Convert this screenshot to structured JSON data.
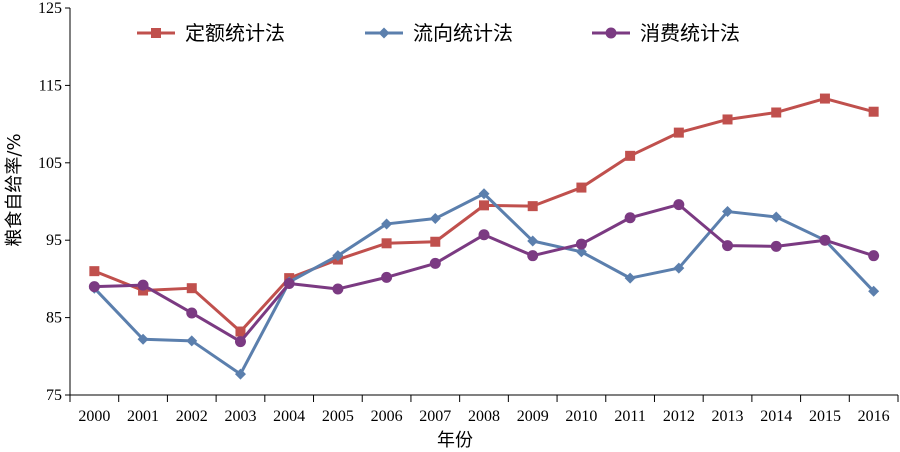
{
  "chart_data": {
    "type": "line",
    "xlabel": "年份",
    "ylabel": "粮食自给率/%",
    "categories": [
      "2000",
      "2001",
      "2002",
      "2003",
      "2004",
      "2005",
      "2006",
      "2007",
      "2008",
      "2009",
      "2010",
      "2011",
      "2012",
      "2013",
      "2014",
      "2015",
      "2016"
    ],
    "y_ticks": [
      "75",
      "85",
      "95",
      "105",
      "115",
      "125"
    ],
    "ylim": [
      75,
      125
    ],
    "grid": false,
    "legend_position": "top",
    "series": [
      {
        "name": "定额统计法",
        "color": "#c0504d",
        "marker": "square",
        "values": [
          91.0,
          88.5,
          88.8,
          83.2,
          90.1,
          92.5,
          94.6,
          94.8,
          99.5,
          99.4,
          101.8,
          105.9,
          108.9,
          110.6,
          111.5,
          113.3,
          111.6
        ]
      },
      {
        "name": "流向统计法",
        "color": "#5b7fad",
        "marker": "diamond",
        "values": [
          88.8,
          82.2,
          82.0,
          77.7,
          89.6,
          93.0,
          97.1,
          97.8,
          101.0,
          94.9,
          93.5,
          90.1,
          91.4,
          98.7,
          98.0,
          95.0,
          88.4
        ]
      },
      {
        "name": "消费统计法",
        "color": "#7b3a82",
        "marker": "circle",
        "values": [
          89.0,
          89.2,
          85.6,
          81.9,
          89.4,
          88.7,
          90.2,
          92.0,
          95.7,
          93.0,
          94.5,
          97.9,
          99.6,
          94.3,
          94.2,
          95.0,
          93.0
        ]
      }
    ]
  }
}
